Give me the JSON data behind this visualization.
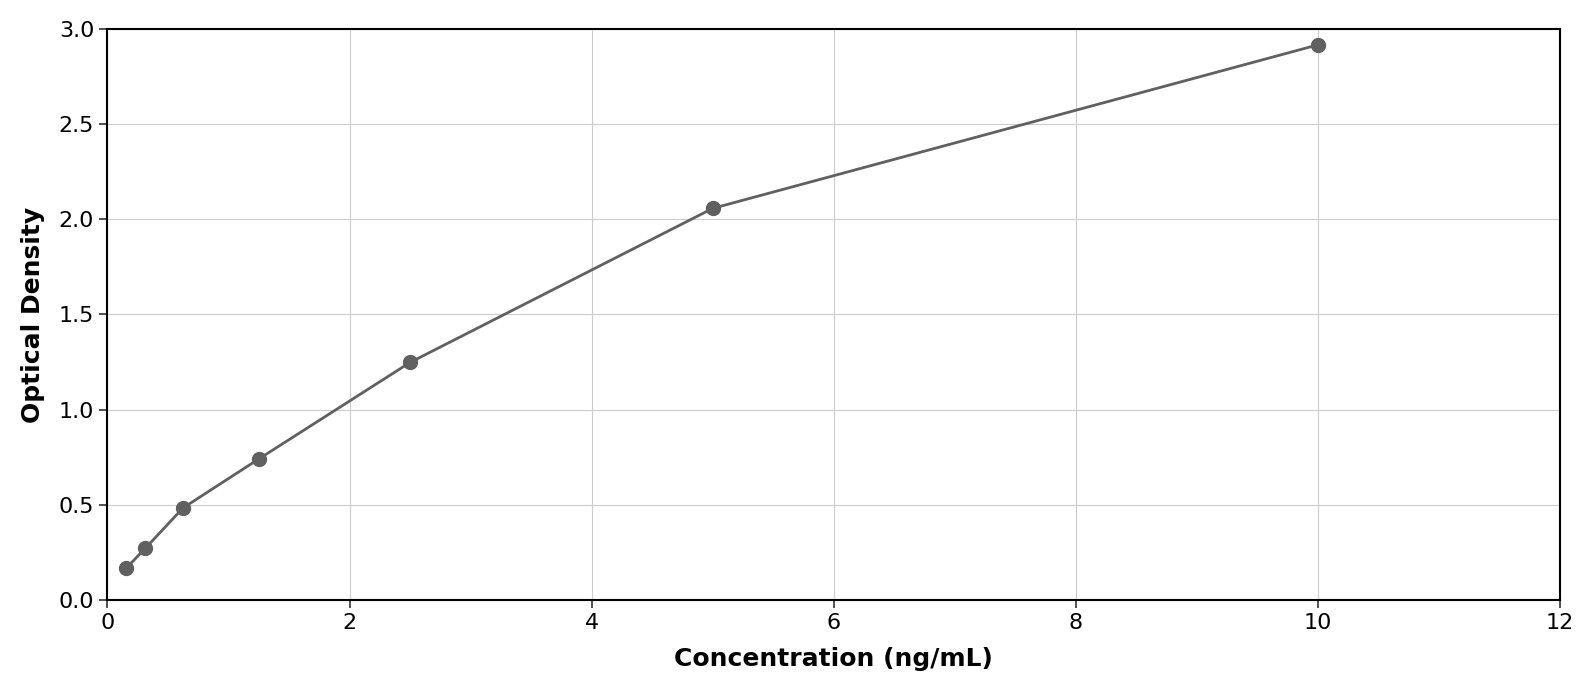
{
  "x_data": [
    0.156,
    0.313,
    0.625,
    1.25,
    2.5,
    5.0,
    10.0
  ],
  "y_data": [
    0.168,
    0.272,
    0.484,
    0.741,
    1.248,
    2.057,
    2.916
  ],
  "xlabel": "Concentration (ng/mL)",
  "ylabel": "Optical Density",
  "xlim": [
    0,
    12
  ],
  "ylim": [
    0,
    3.0
  ],
  "xticks": [
    0,
    2,
    4,
    6,
    8,
    10,
    12
  ],
  "yticks": [
    0,
    0.5,
    1.0,
    1.5,
    2.0,
    2.5,
    3.0
  ],
  "marker_color": "#606060",
  "line_color": "#606060",
  "grid_color": "#cccccc",
  "background_color": "#ffffff",
  "border_color": "#000000",
  "xlabel_fontsize": 18,
  "ylabel_fontsize": 18,
  "tick_fontsize": 16,
  "marker_size": 10,
  "line_width": 2.0
}
